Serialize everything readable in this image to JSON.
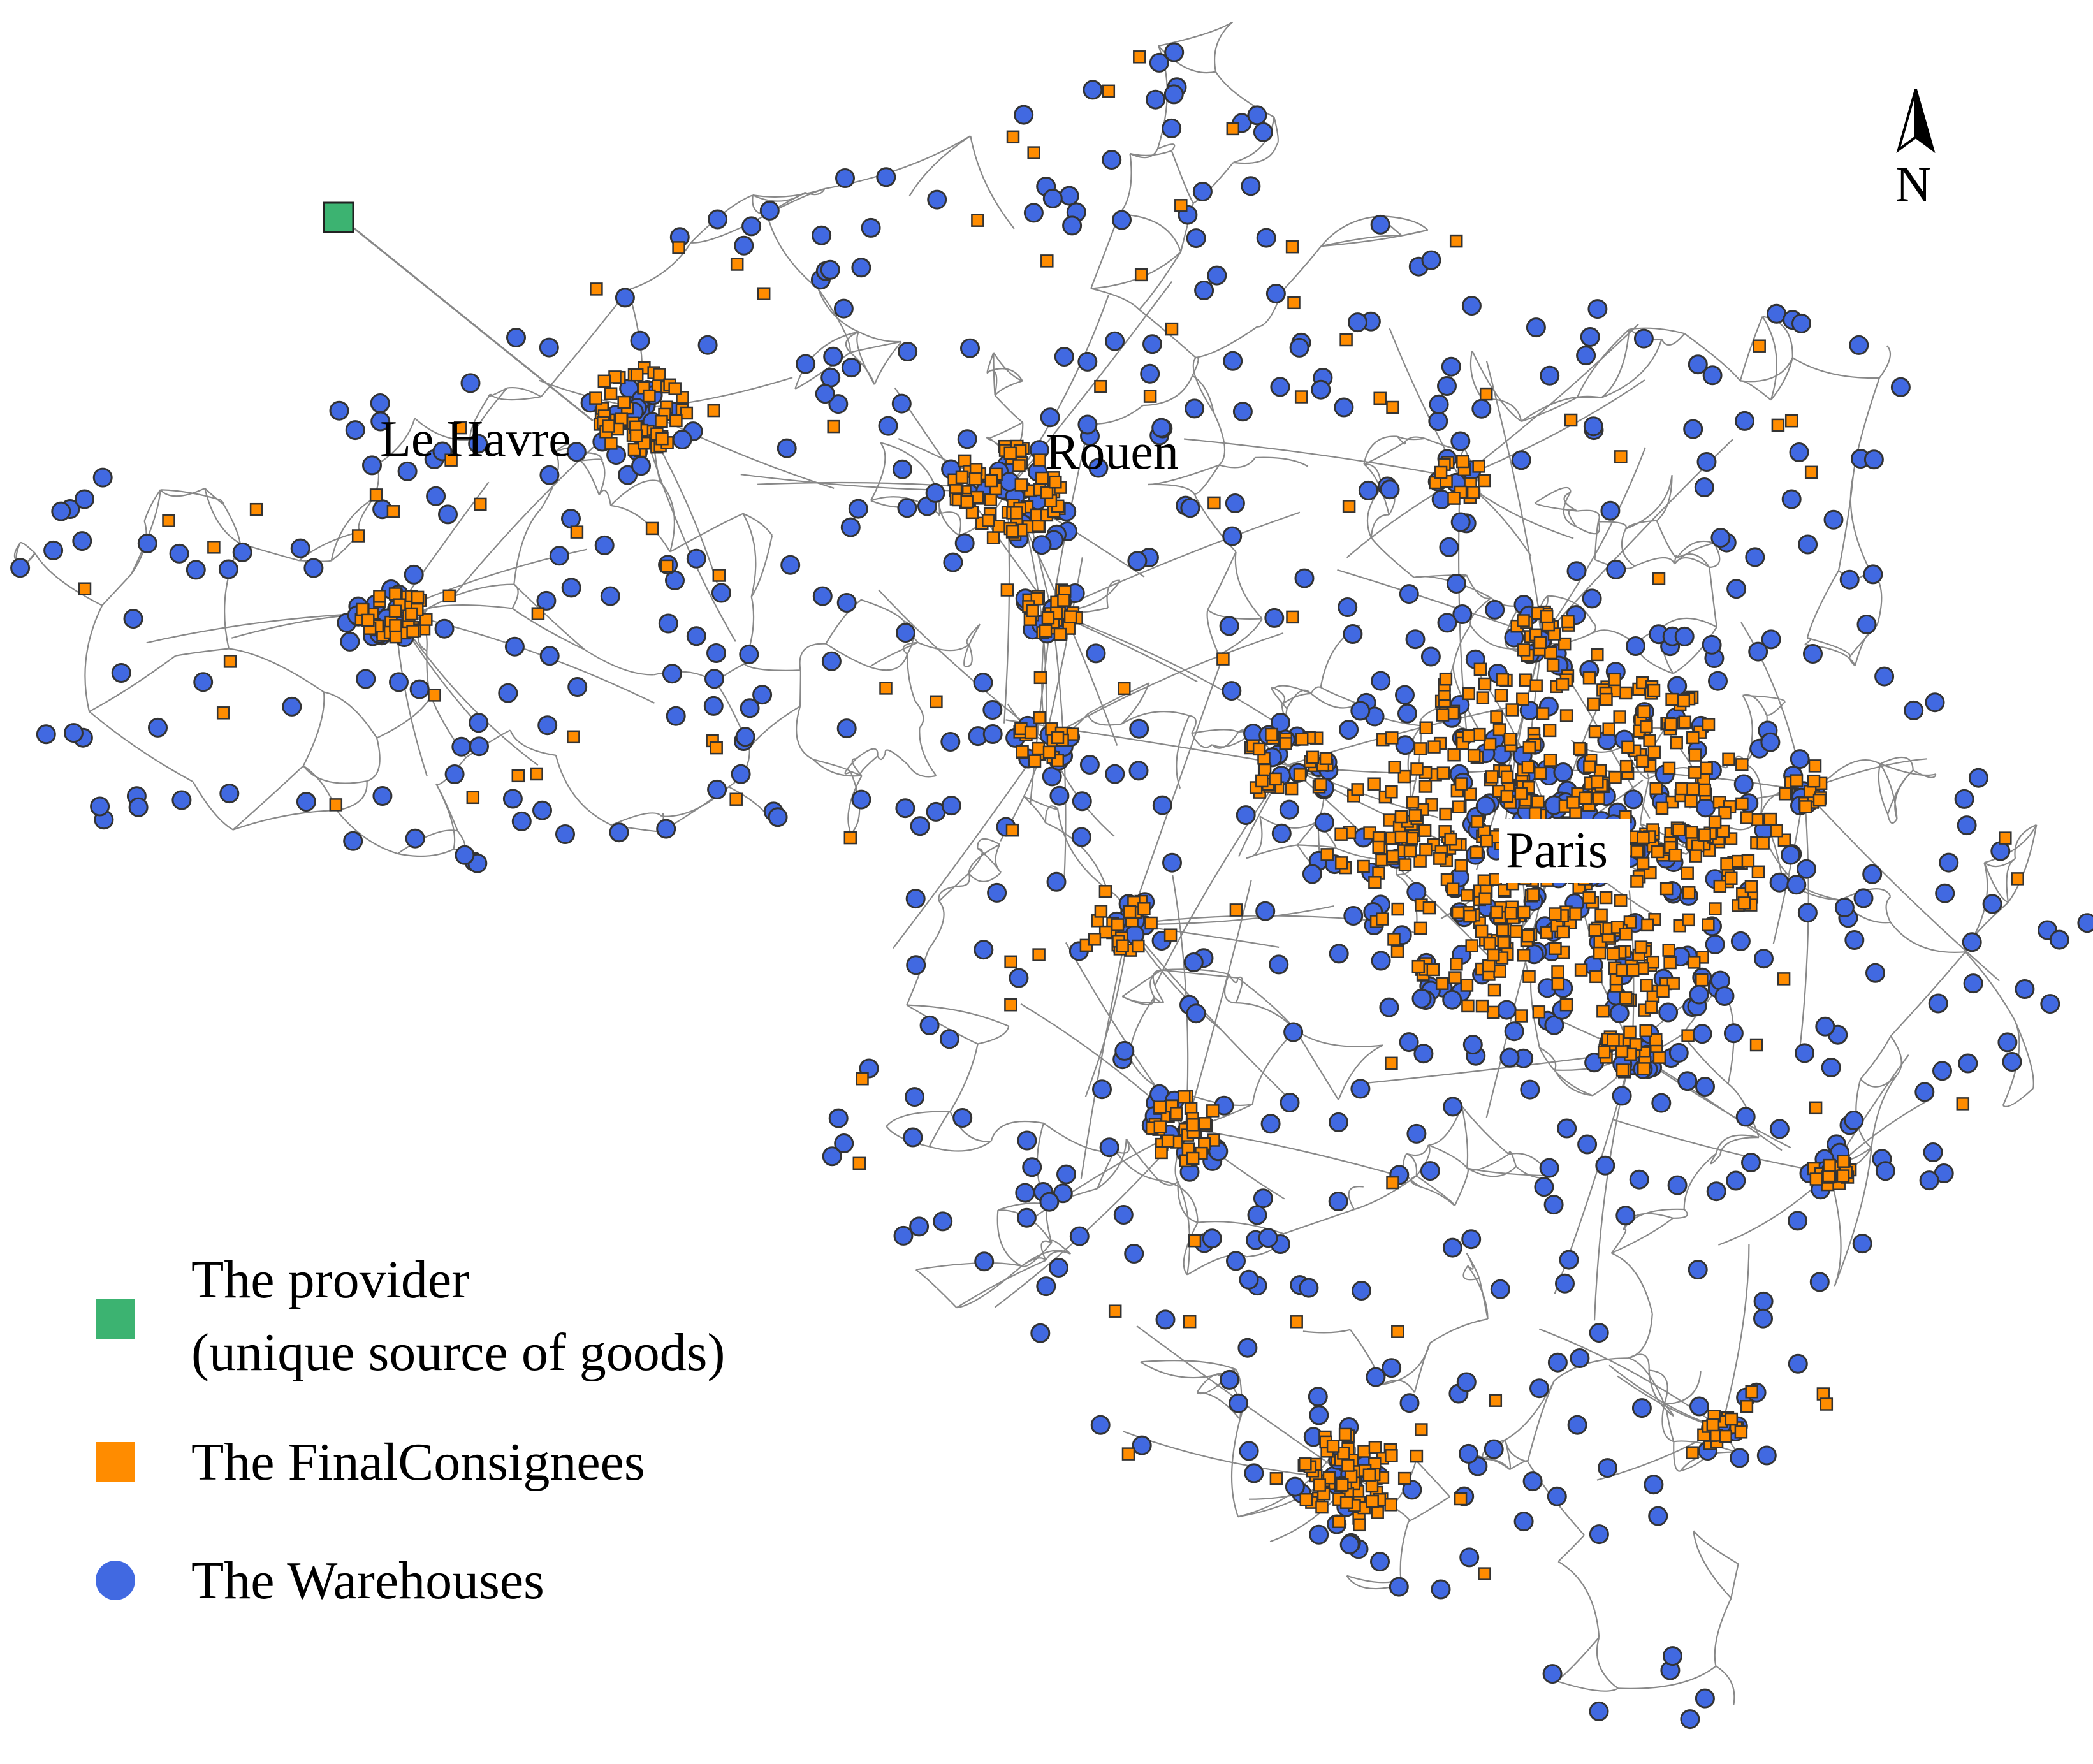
{
  "map": {
    "cities": [
      {
        "name": "Le Havre"
      },
      {
        "name": "Rouen"
      },
      {
        "name": "Paris"
      }
    ],
    "north_label": "N",
    "colors": {
      "road": "#888888",
      "provider": "#3cb371",
      "consignee": "#ff8c00",
      "warehouse": "#4169e1",
      "outline": "#333333"
    }
  },
  "legend": {
    "provider_line1": "The provider",
    "provider_line2": "(unique source of goods)",
    "consignees": "The FinalConsignees",
    "warehouses": "The Warehouses"
  }
}
